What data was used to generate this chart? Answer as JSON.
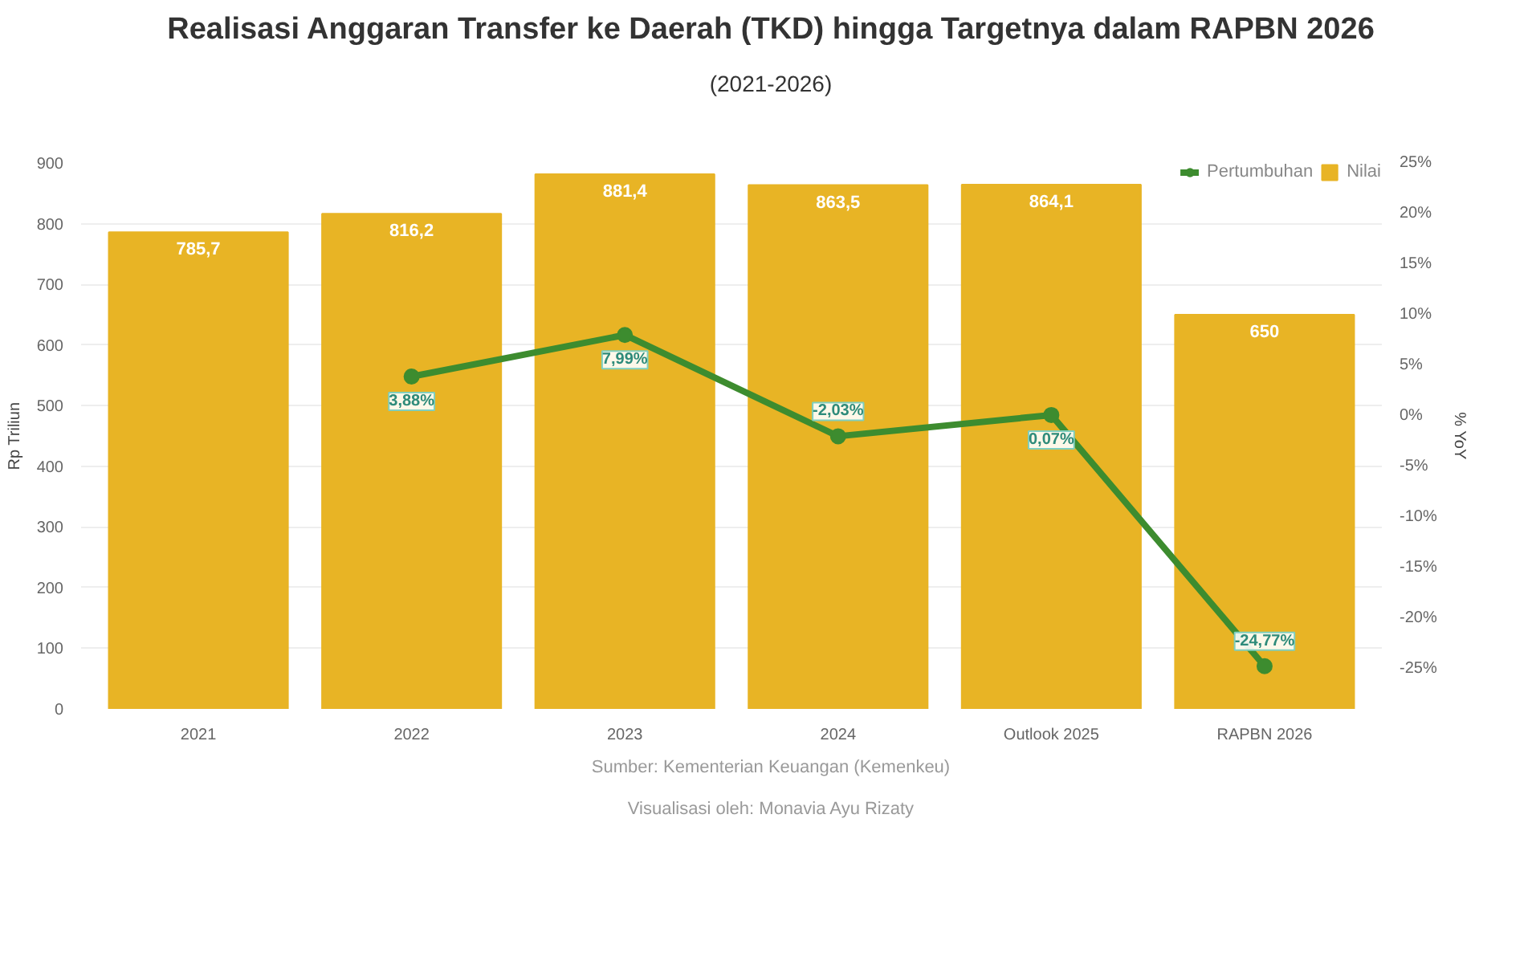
{
  "chart_data": {
    "type": "bar",
    "title": "Realisasi Anggaran Transfer ke Daerah (TKD) hingga Targetnya dalam RAPBN 2026",
    "subtitle": "(2021-2026)",
    "ylabel": "Rp Triliun",
    "y2label": "% YoY",
    "categories": [
      "2021",
      "2022",
      "2023",
      "2024",
      "Outlook 2025",
      "RAPBN 2026"
    ],
    "series": [
      {
        "name": "Pertumbuhan",
        "type": "line",
        "axis": "y2",
        "color": "#3d8c2f",
        "values": [
          null,
          3.88,
          7.99,
          -2.03,
          0.07,
          -24.77
        ],
        "value_labels": [
          null,
          "3,88%",
          "7,99%",
          "-2,03%",
          "0,07%",
          "-24,77%"
        ]
      },
      {
        "name": "Nilai",
        "color": "#e8b425",
        "values": [
          785.7,
          816.2,
          881.4,
          863.5,
          864.1,
          650
        ],
        "value_labels": [
          "785,7",
          "816,2",
          "881,4",
          "863,5",
          "864,1",
          "650"
        ]
      }
    ],
    "ylim": [
      0,
      900
    ],
    "yticks": [
      0,
      100,
      200,
      300,
      400,
      500,
      600,
      700,
      800,
      900
    ],
    "y2lim": [
      -29,
      25
    ],
    "y2ticks": [
      {
        "value": -25,
        "label": "-25%"
      },
      {
        "value": -20,
        "label": "-20%"
      },
      {
        "value": -15,
        "label": "-15%"
      },
      {
        "value": -10,
        "label": "-10%"
      },
      {
        "value": -5,
        "label": "-5%"
      },
      {
        "value": 0,
        "label": "0%"
      },
      {
        "value": 5,
        "label": "5%"
      },
      {
        "value": 10,
        "label": "10%"
      },
      {
        "value": 15,
        "label": "15%"
      },
      {
        "value": 20,
        "label": "20%"
      },
      {
        "value": 25,
        "label": "25%"
      }
    ],
    "grid": "y",
    "legend": "top right",
    "marker": "circle",
    "line_style": "solid",
    "annotations": [
      "Sumber: Kementerian Keuangan (Kemenkeu)",
      "Visualisasi oleh: Monavia Ayu Rizaty"
    ]
  }
}
